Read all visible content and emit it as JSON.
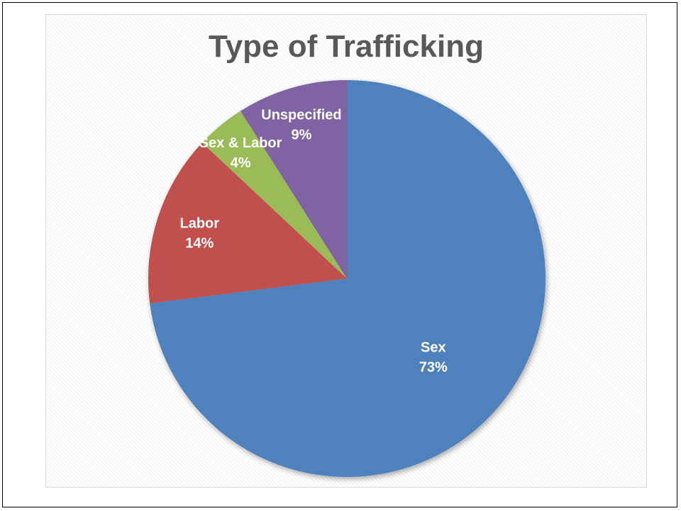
{
  "chart_data": {
    "type": "pie",
    "title": "Type of Trafficking",
    "slices": [
      {
        "name": "Sex",
        "percent_label": "73%",
        "value": 73,
        "color": "#4F81BD"
      },
      {
        "name": "Labor",
        "percent_label": "14%",
        "value": 14,
        "color": "#C0504D"
      },
      {
        "name": "Sex & Labor",
        "percent_label": "4%",
        "value": 4,
        "color": "#9BBB59"
      },
      {
        "name": "Unspecified",
        "percent_label": "9%",
        "value": 9,
        "color": "#8064A2"
      }
    ],
    "start_angle_deg": 0,
    "direction": "clockwise",
    "legend": "none",
    "data_labels": "inside"
  }
}
